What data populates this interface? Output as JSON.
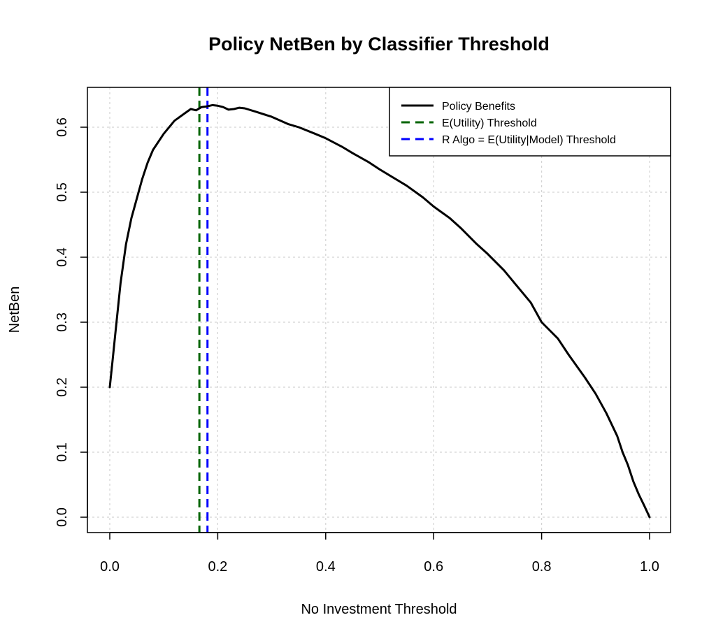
{
  "chart_data": {
    "type": "line",
    "title": "Policy NetBen by Classifier Threshold",
    "xlabel": "No Investment Threshold",
    "ylabel": "NetBen",
    "xlim": [
      -0.04,
      1.04
    ],
    "ylim": [
      -0.025,
      0.66
    ],
    "x_ticks": [
      0.0,
      0.2,
      0.4,
      0.6,
      0.8,
      1.0
    ],
    "x_tick_labels": [
      "0.0",
      "0.2",
      "0.4",
      "0.6",
      "0.8",
      "1.0"
    ],
    "y_ticks": [
      0.0,
      0.1,
      0.2,
      0.3,
      0.4,
      0.5,
      0.6
    ],
    "y_tick_labels": [
      "0.0",
      "0.1",
      "0.2",
      "0.3",
      "0.4",
      "0.5",
      "0.6"
    ],
    "grid": true,
    "legend_position": "top-right",
    "series": [
      {
        "name": "Policy Benefits",
        "color": "#000000",
        "style": "solid",
        "x": [
          0.0,
          0.005,
          0.01,
          0.02,
          0.03,
          0.04,
          0.05,
          0.06,
          0.07,
          0.08,
          0.1,
          0.12,
          0.14,
          0.15,
          0.16,
          0.17,
          0.18,
          0.19,
          0.2,
          0.21,
          0.22,
          0.23,
          0.24,
          0.25,
          0.27,
          0.3,
          0.33,
          0.35,
          0.38,
          0.4,
          0.43,
          0.45,
          0.48,
          0.5,
          0.53,
          0.55,
          0.58,
          0.6,
          0.63,
          0.65,
          0.68,
          0.7,
          0.73,
          0.75,
          0.78,
          0.8,
          0.83,
          0.85,
          0.88,
          0.9,
          0.92,
          0.94,
          0.95,
          0.96,
          0.97,
          0.98,
          0.99,
          1.0
        ],
        "y": [
          0.2,
          0.24,
          0.28,
          0.36,
          0.42,
          0.46,
          0.49,
          0.52,
          0.545,
          0.565,
          0.59,
          0.61,
          0.622,
          0.628,
          0.626,
          0.631,
          0.632,
          0.634,
          0.633,
          0.631,
          0.627,
          0.628,
          0.63,
          0.629,
          0.624,
          0.616,
          0.605,
          0.6,
          0.59,
          0.583,
          0.57,
          0.56,
          0.546,
          0.535,
          0.52,
          0.51,
          0.492,
          0.478,
          0.46,
          0.445,
          0.42,
          0.405,
          0.38,
          0.36,
          0.33,
          0.3,
          0.275,
          0.25,
          0.215,
          0.19,
          0.16,
          0.125,
          0.1,
          0.08,
          0.055,
          0.035,
          0.018,
          0.0
        ]
      }
    ],
    "vlines": [
      {
        "name": "E(Utility) Threshold",
        "x": 0.166,
        "color": "#006400",
        "style": "dashed"
      },
      {
        "name": "R Algo = E(Utility|Model) Threshold",
        "x": 0.181,
        "color": "#0000ff",
        "style": "dashed"
      }
    ],
    "legend": [
      {
        "label": "Policy Benefits",
        "color": "#000000",
        "style": "solid"
      },
      {
        "label": "E(Utility) Threshold",
        "color": "#006400",
        "style": "dashed"
      },
      {
        "label": "R Algo = E(Utility|Model) Threshold",
        "color": "#0000ff",
        "style": "dashed"
      }
    ]
  }
}
